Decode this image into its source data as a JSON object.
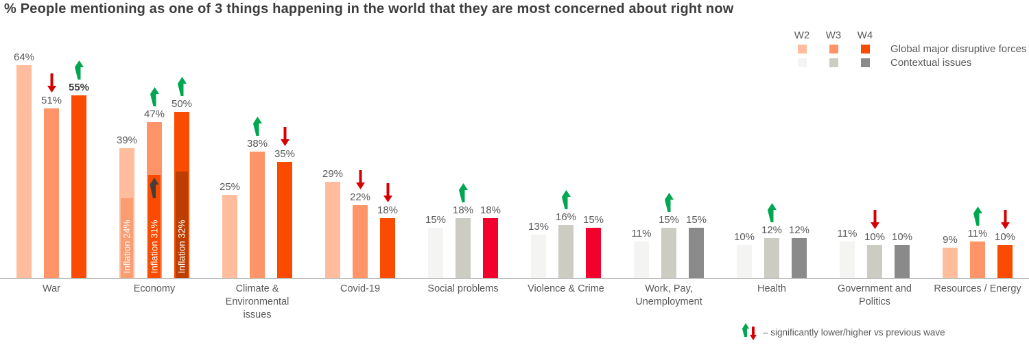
{
  "chart_data": {
    "type": "bar",
    "title": "% People mentioning as one of 3 things happening in the world that they are most concerned about right now",
    "unit": "percent",
    "ylim": [
      0,
      70
    ],
    "grid": false,
    "legend_position": "top-right",
    "waves": [
      "W2",
      "W3",
      "W4"
    ],
    "legend": {
      "rows": [
        {
          "label": "Global major disruptive forces",
          "colors": [
            "#FFBD9E",
            "#FF9468",
            "#FB4B01"
          ]
        },
        {
          "label": "Contextual issues",
          "colors": [
            "#F4F4F2",
            "#CCCCC2",
            "#8A8A8A"
          ]
        }
      ]
    },
    "footnote": "– significantly lower/higher vs previous wave",
    "arrow_colors": {
      "up": "#00A650",
      "down": "#D60000",
      "dark": "#3f3f3f"
    },
    "groups": [
      {
        "category": "War",
        "bars": [
          {
            "wave": "W2",
            "value": 64,
            "label": "64%",
            "color": "#FFBD9E"
          },
          {
            "wave": "W3",
            "value": 51,
            "label": "51%",
            "color": "#FF9468",
            "arrow": "down"
          },
          {
            "wave": "W4",
            "value": 55,
            "label": "55%",
            "color": "#FB4B01",
            "arrow": "up",
            "bold": true
          }
        ]
      },
      {
        "category": "Economy",
        "bars": [
          {
            "wave": "W2",
            "value": 39,
            "label": "39%",
            "color": "#FFBD9E",
            "inner": {
              "value": 24,
              "label": "Inflation 24%",
              "color": "#FB9C71"
            }
          },
          {
            "wave": "W3",
            "value": 47,
            "label": "47%",
            "color": "#FF9468",
            "arrow": "up",
            "inner": {
              "value": 31,
              "label": "Inflation 31%",
              "color": "#FB4B01",
              "arrow": "dark"
            }
          },
          {
            "wave": "W4",
            "value": 50,
            "label": "50%",
            "color": "#FB4B01",
            "arrow": "up",
            "inner": {
              "value": 32,
              "label": "Inflation 32%",
              "color": "#BC3E00"
            }
          }
        ]
      },
      {
        "category": "Climate & Environmental issues",
        "bars": [
          {
            "wave": "W2",
            "value": 25,
            "label": "25%",
            "color": "#FFBD9E"
          },
          {
            "wave": "W3",
            "value": 38,
            "label": "38%",
            "color": "#FF9468",
            "arrow": "up"
          },
          {
            "wave": "W4",
            "value": 35,
            "label": "35%",
            "color": "#FB4B01",
            "arrow": "down"
          }
        ]
      },
      {
        "category": "Covid-19",
        "bars": [
          {
            "wave": "W2",
            "value": 29,
            "label": "29%",
            "color": "#FFBD9E"
          },
          {
            "wave": "W3",
            "value": 22,
            "label": "22%",
            "color": "#FF9468",
            "arrow": "down"
          },
          {
            "wave": "W4",
            "value": 18,
            "label": "18%",
            "color": "#FB4B01",
            "arrow": "down"
          }
        ]
      },
      {
        "category": "Social problems",
        "bars": [
          {
            "wave": "W2",
            "value": 15,
            "label": "15%",
            "color": "#F4F4F2"
          },
          {
            "wave": "W3",
            "value": 18,
            "label": "18%",
            "color": "#CCCCC2",
            "arrow": "up"
          },
          {
            "wave": "W4",
            "value": 18,
            "label": "18%",
            "color": "#F4002C"
          }
        ]
      },
      {
        "category": "Violence & Crime",
        "bars": [
          {
            "wave": "W2",
            "value": 13,
            "label": "13%",
            "color": "#F4F4F2"
          },
          {
            "wave": "W3",
            "value": 16,
            "label": "16%",
            "color": "#CCCCC2",
            "arrow": "up"
          },
          {
            "wave": "W4",
            "value": 15,
            "label": "15%",
            "color": "#F4002C"
          }
        ]
      },
      {
        "category": "Work, Pay, Unemployment",
        "bars": [
          {
            "wave": "W2",
            "value": 11,
            "label": "11%",
            "color": "#F4F4F2"
          },
          {
            "wave": "W3",
            "value": 15,
            "label": "15%",
            "color": "#CCCCC2",
            "arrow": "up"
          },
          {
            "wave": "W4",
            "value": 15,
            "label": "15%",
            "color": "#8A8A8A"
          }
        ]
      },
      {
        "category": "Health",
        "bars": [
          {
            "wave": "W2",
            "value": 10,
            "label": "10%",
            "color": "#F4F4F2"
          },
          {
            "wave": "W3",
            "value": 12,
            "label": "12%",
            "color": "#CCCCC2",
            "arrow": "up"
          },
          {
            "wave": "W4",
            "value": 12,
            "label": "12%",
            "color": "#8A8A8A"
          }
        ]
      },
      {
        "category": "Government and Politics",
        "bars": [
          {
            "wave": "W2",
            "value": 11,
            "label": "11%",
            "color": "#F4F4F2"
          },
          {
            "wave": "W3",
            "value": 10,
            "label": "10%",
            "color": "#CCCCC2",
            "arrow": "down"
          },
          {
            "wave": "W4",
            "value": 10,
            "label": "10%",
            "color": "#8A8A8A"
          }
        ]
      },
      {
        "category": "Resources / Energy",
        "bars": [
          {
            "wave": "W2",
            "value": 9,
            "label": "9%",
            "color": "#FFBD9E"
          },
          {
            "wave": "W3",
            "value": 11,
            "label": "11%",
            "color": "#FF9468",
            "arrow": "up"
          },
          {
            "wave": "W4",
            "value": 10,
            "label": "10%",
            "color": "#FB4B01",
            "arrow": "down"
          }
        ]
      }
    ]
  }
}
